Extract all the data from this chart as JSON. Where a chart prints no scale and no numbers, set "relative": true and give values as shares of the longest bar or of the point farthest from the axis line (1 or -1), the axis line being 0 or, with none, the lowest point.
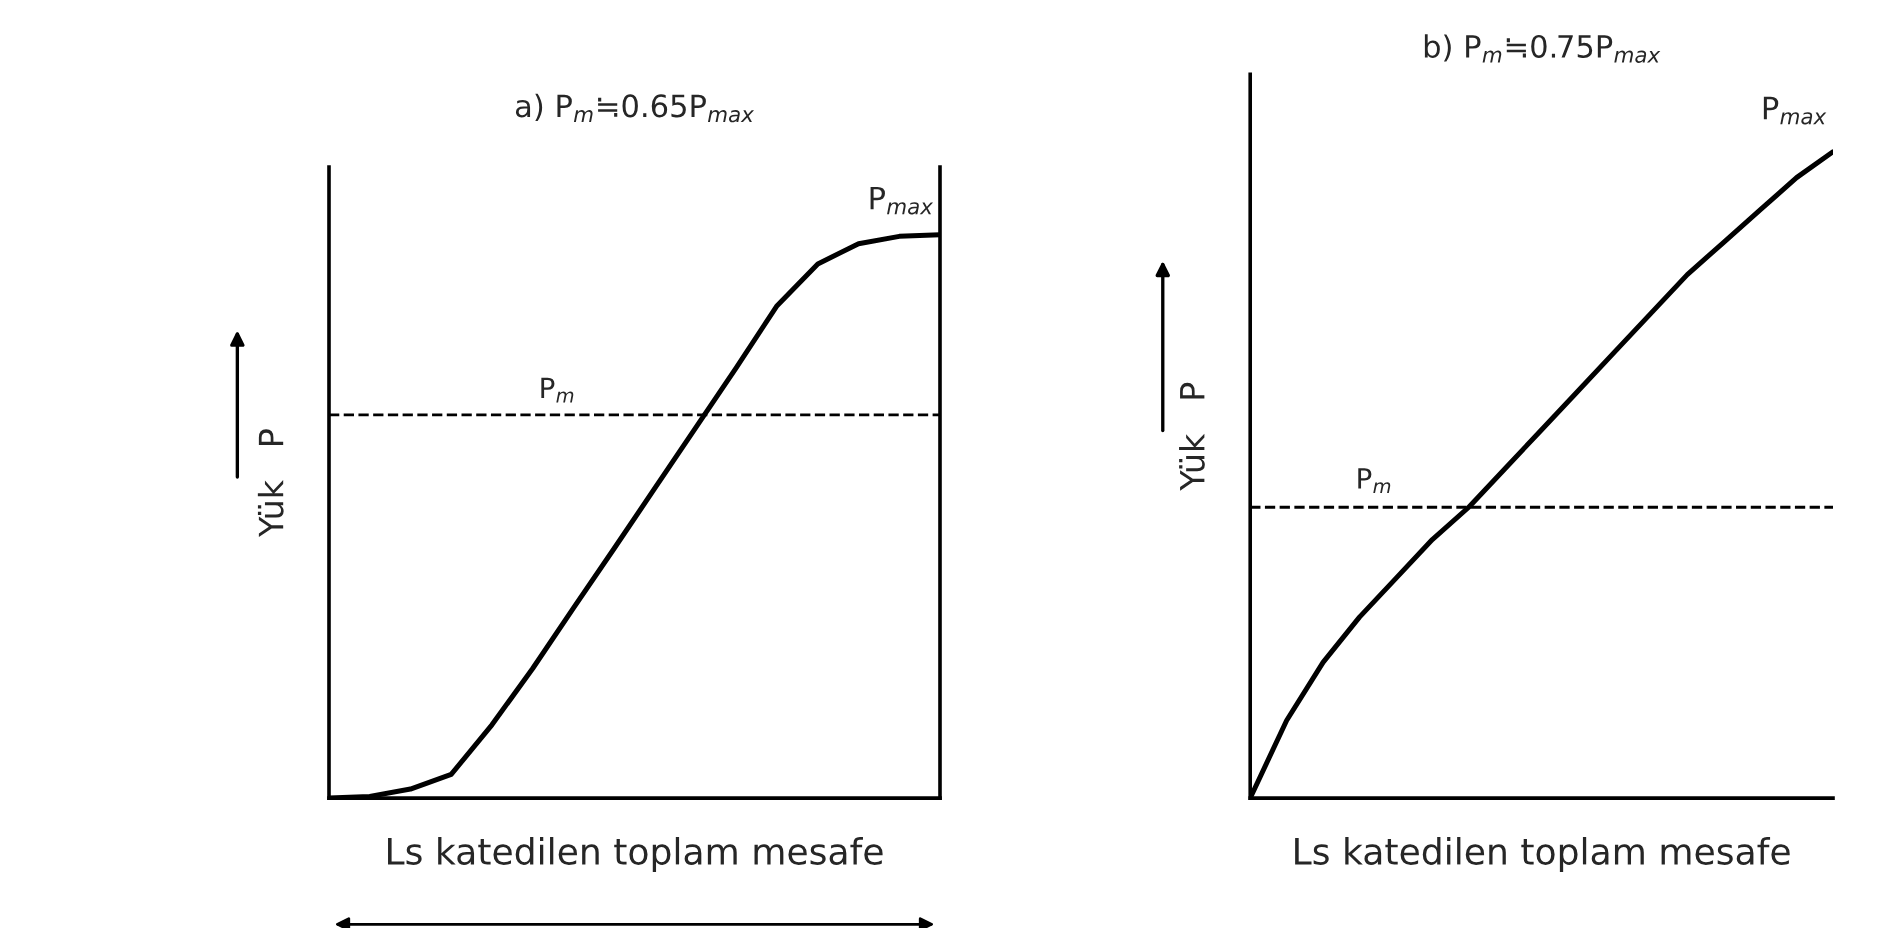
{
  "chart_data": [
    {
      "type": "line",
      "title": "a) P$_{m}$≒0.65P$_{max}$",
      "xlabel": "Ls katedilen toplam mesafe",
      "ylabel": "Yük   P",
      "relative": true,
      "categories": [
        null,
        null,
        null,
        null,
        null,
        null,
        null,
        null,
        null,
        null,
        null,
        null,
        null,
        null,
        null,
        null
      ],
      "series": [
        {
          "color": "#000000",
          "values": [
            0,
            0.003,
            0.016,
            0.042,
            0.13,
            0.23,
            0.337,
            0.443,
            0.55,
            0.657,
            0.764,
            0.874,
            0.948,
            0.984,
            0.997,
            1
          ]
        }
      ],
      "ref_lines": [
        {
          "axis": "y",
          "value": 0.68,
          "label": "P$_{m}$",
          "line_style": "dashed",
          "color": "#000000"
        }
      ],
      "annotations": [
        "P$_{max}$"
      ],
      "tick_labels": false
    },
    {
      "type": "line",
      "title": "b) P$_{m}$≒0.75P$_{max}$",
      "xlabel": "Ls katedilen toplam mesafe",
      "ylabel": "Yük   P",
      "relative": true,
      "categories": [
        null,
        null,
        null,
        null,
        null,
        null,
        null,
        null,
        null,
        null,
        null,
        null,
        null,
        null,
        null,
        null,
        null
      ],
      "series": [
        {
          "color": "#000000",
          "values": [
            0,
            0.12,
            0.21,
            0.28,
            0.34,
            0.4,
            0.45,
            0.51,
            0.57,
            0.63,
            0.69,
            0.75,
            0.81,
            0.86,
            0.91,
            0.96,
            1
          ]
        }
      ],
      "ref_lines": [
        {
          "axis": "y",
          "value": 0.45,
          "label": "P$_{m}$",
          "line_style": "dashed",
          "color": "#000000"
        }
      ],
      "annotations": [
        "P$_{max}$"
      ],
      "tick_labels": false
    }
  ]
}
